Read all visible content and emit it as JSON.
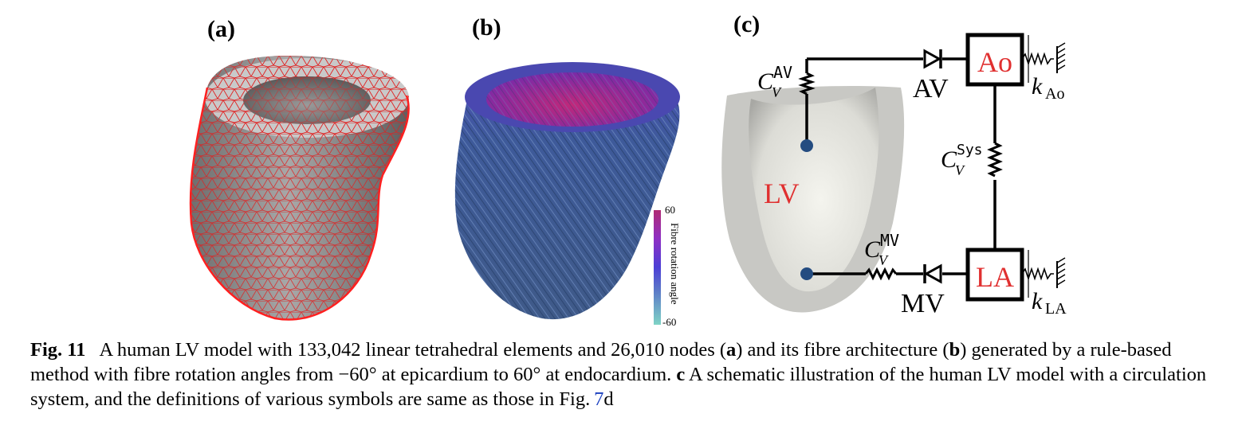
{
  "panels": {
    "a": "(a)",
    "b": "(b)",
    "c": "(c)"
  },
  "colorbar": {
    "title": "Fibre rotation angle",
    "max": "60",
    "min": "-60",
    "colors": [
      "#7fd4c6",
      "#5b78c8",
      "#4c3fd6",
      "#8e2fc4",
      "#b02a74"
    ]
  },
  "schematic": {
    "lv": "LV",
    "ao": "Ao",
    "la": "LA",
    "av": "AV",
    "mv": "MV",
    "c_av": {
      "base": "C",
      "sub": "V",
      "sup": "AV"
    },
    "c_sys": {
      "base": "C",
      "sub": "V",
      "sup": "Sys"
    },
    "c_mv": {
      "base": "C",
      "sub": "V",
      "sup": "MV"
    },
    "k_ao": {
      "base": "k",
      "sub": "Ao"
    },
    "k_la": {
      "base": "k",
      "sub": "LA"
    },
    "label_color": "#e03030"
  },
  "caption": {
    "fig_label": "Fig. 11",
    "text1": "A human LV model with 133,042 linear tetrahedral elements and 26,010 nodes (",
    "a": "a",
    "text2": ") and its fibre architecture (",
    "b": "b",
    "text3": ") generated by a rule-based method with fibre rotation angles from −60° at epicardium to 60° at endocardium. ",
    "c": "c",
    "text4": " A schematic illustration of the human LV model with a circulation system, and the definitions of various symbols are same as those in Fig.",
    "ref": "7",
    "text5": "d"
  }
}
